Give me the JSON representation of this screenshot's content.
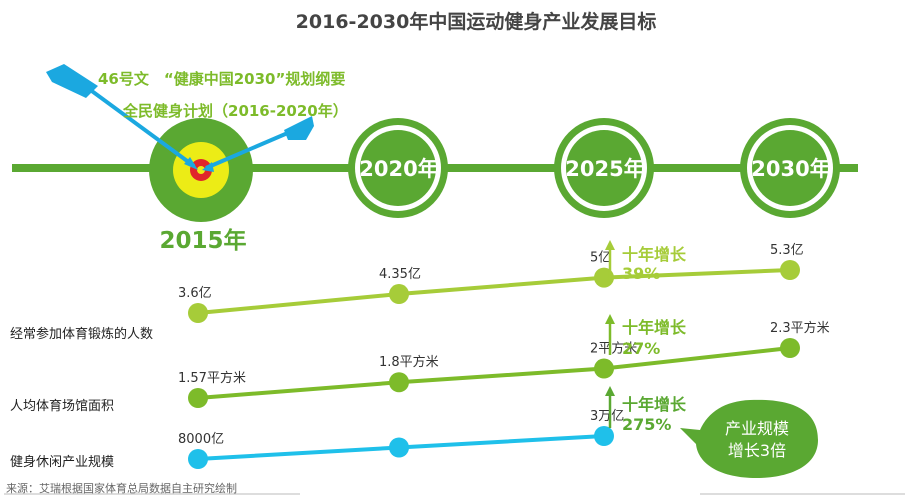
{
  "title": "2016-2030年中国运动健身产业发展目标",
  "policies": {
    "line1": "46号文　“健康中国2030”规划纲要",
    "line2": "全民健身计划（2016-2020年）"
  },
  "milestones": [
    "2015年",
    "2020年",
    "2025年",
    "2030年"
  ],
  "growth_notes": [
    {
      "label": "十年增长",
      "value": "39%"
    },
    {
      "label": "十年增长",
      "value": "27%"
    },
    {
      "label": "十年增长",
      "value": "275%"
    }
  ],
  "bubble": {
    "line1": "产业规模",
    "line2": "增长3倍"
  },
  "source": "来源：艾瑞根据国家体育总局数据自主研究绘制",
  "colors": {
    "dark_green": "#5aa832",
    "mid_green": "#7dbb2a",
    "light_green": "#a6cc39",
    "cyan": "#1fc0ea",
    "arrow_blue": "#1ba8e0",
    "target_yellow": "#ecec16",
    "target_red": "#e0262b",
    "title_text": "#444444"
  },
  "chart_data": {
    "type": "line",
    "categories": [
      "2015年",
      "2020年",
      "2025年",
      "2030年"
    ],
    "series": [
      {
        "name": "经常参加体育锻炼的人数",
        "values": [
          3.6,
          4.35,
          5,
          5.3
        ],
        "labels": [
          "3.6亿",
          "4.35亿",
          "5亿",
          "5.3亿"
        ],
        "unit": "亿"
      },
      {
        "name": "人均体育场馆面积",
        "values": [
          1.57,
          1.8,
          2,
          2.3
        ],
        "labels": [
          "1.57平方米",
          "1.8平方米",
          "2平方米",
          "2.3平方米"
        ],
        "unit": "平方米"
      },
      {
        "name": "健身休闲产业规模",
        "values": [
          8000,
          null,
          30000,
          null
        ],
        "labels": [
          "8000亿",
          "",
          "3万亿",
          ""
        ],
        "unit": "亿"
      }
    ]
  }
}
